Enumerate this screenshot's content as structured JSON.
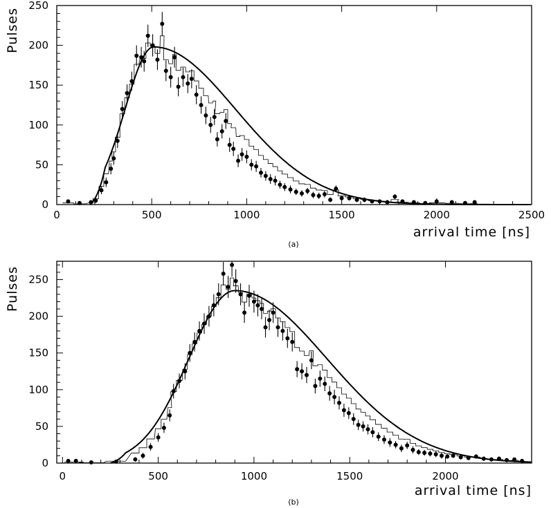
{
  "chart_data": [
    {
      "type": "scatter",
      "panel_label": "(a)",
      "ylabel": "Pulses",
      "xlabel": "arrival time [ns]",
      "xlim": [
        0,
        2500
      ],
      "ylim": [
        0,
        250
      ],
      "x_ticks": [
        "0",
        "500",
        "1000",
        "1500",
        "2000",
        "2500"
      ],
      "y_ticks": [
        "0",
        "50",
        "100",
        "150",
        "200",
        "250"
      ],
      "grid": false,
      "fit_curve": {
        "peak_x": 510,
        "peak_y": 198,
        "start_x": 175,
        "rise_sigma": 150,
        "fall_sigma": 430
      },
      "points": [
        {
          "x": 60,
          "y": 4,
          "err": 2
        },
        {
          "x": 120,
          "y": 2,
          "err": 2
        },
        {
          "x": 180,
          "y": 3,
          "err": 2
        },
        {
          "x": 205,
          "y": 5,
          "err": 3
        },
        {
          "x": 235,
          "y": 18,
          "err": 5
        },
        {
          "x": 260,
          "y": 28,
          "err": 6
        },
        {
          "x": 285,
          "y": 45,
          "err": 7
        },
        {
          "x": 300,
          "y": 58,
          "err": 8
        },
        {
          "x": 320,
          "y": 80,
          "err": 9
        },
        {
          "x": 345,
          "y": 120,
          "err": 10
        },
        {
          "x": 370,
          "y": 140,
          "err": 11
        },
        {
          "x": 395,
          "y": 155,
          "err": 12
        },
        {
          "x": 420,
          "y": 187,
          "err": 13
        },
        {
          "x": 445,
          "y": 185,
          "err": 13
        },
        {
          "x": 460,
          "y": 180,
          "err": 13
        },
        {
          "x": 480,
          "y": 212,
          "err": 14
        },
        {
          "x": 505,
          "y": 200,
          "err": 14
        },
        {
          "x": 530,
          "y": 182,
          "err": 13
        },
        {
          "x": 555,
          "y": 227,
          "err": 15
        },
        {
          "x": 575,
          "y": 168,
          "err": 13
        },
        {
          "x": 600,
          "y": 160,
          "err": 13
        },
        {
          "x": 620,
          "y": 185,
          "err": 13
        },
        {
          "x": 640,
          "y": 148,
          "err": 12
        },
        {
          "x": 665,
          "y": 160,
          "err": 12
        },
        {
          "x": 690,
          "y": 152,
          "err": 12
        },
        {
          "x": 710,
          "y": 158,
          "err": 12
        },
        {
          "x": 735,
          "y": 138,
          "err": 12
        },
        {
          "x": 760,
          "y": 125,
          "err": 11
        },
        {
          "x": 785,
          "y": 112,
          "err": 11
        },
        {
          "x": 810,
          "y": 100,
          "err": 10
        },
        {
          "x": 830,
          "y": 110,
          "err": 10
        },
        {
          "x": 845,
          "y": 82,
          "err": 9
        },
        {
          "x": 870,
          "y": 92,
          "err": 9
        },
        {
          "x": 890,
          "y": 105,
          "err": 10
        },
        {
          "x": 910,
          "y": 75,
          "err": 9
        },
        {
          "x": 930,
          "y": 70,
          "err": 9
        },
        {
          "x": 955,
          "y": 55,
          "err": 8
        },
        {
          "x": 975,
          "y": 63,
          "err": 8
        },
        {
          "x": 1000,
          "y": 60,
          "err": 8
        },
        {
          "x": 1025,
          "y": 50,
          "err": 7
        },
        {
          "x": 1050,
          "y": 48,
          "err": 7
        },
        {
          "x": 1075,
          "y": 40,
          "err": 6
        },
        {
          "x": 1100,
          "y": 36,
          "err": 6
        },
        {
          "x": 1125,
          "y": 32,
          "err": 6
        },
        {
          "x": 1150,
          "y": 30,
          "err": 6
        },
        {
          "x": 1175,
          "y": 25,
          "err": 5
        },
        {
          "x": 1200,
          "y": 22,
          "err": 5
        },
        {
          "x": 1230,
          "y": 19,
          "err": 5
        },
        {
          "x": 1260,
          "y": 16,
          "err": 4
        },
        {
          "x": 1290,
          "y": 14,
          "err": 4
        },
        {
          "x": 1320,
          "y": 17,
          "err": 4
        },
        {
          "x": 1350,
          "y": 12,
          "err": 4
        },
        {
          "x": 1380,
          "y": 11,
          "err": 4
        },
        {
          "x": 1410,
          "y": 13,
          "err": 4
        },
        {
          "x": 1440,
          "y": 6,
          "err": 3
        },
        {
          "x": 1470,
          "y": 20,
          "err": 4
        },
        {
          "x": 1500,
          "y": 8,
          "err": 3
        },
        {
          "x": 1540,
          "y": 8,
          "err": 3
        },
        {
          "x": 1580,
          "y": 6,
          "err": 3
        },
        {
          "x": 1620,
          "y": 6,
          "err": 3
        },
        {
          "x": 1660,
          "y": 4,
          "err": 2
        },
        {
          "x": 1700,
          "y": 4,
          "err": 2
        },
        {
          "x": 1740,
          "y": 3,
          "err": 2
        },
        {
          "x": 1780,
          "y": 10,
          "err": 3
        },
        {
          "x": 1820,
          "y": 4,
          "err": 2
        },
        {
          "x": 1880,
          "y": 3,
          "err": 2
        },
        {
          "x": 1940,
          "y": 2,
          "err": 2
        },
        {
          "x": 2000,
          "y": 4,
          "err": 2
        },
        {
          "x": 2080,
          "y": 3,
          "err": 2
        },
        {
          "x": 2150,
          "y": 2,
          "err": 2
        },
        {
          "x": 2200,
          "y": 3,
          "err": 2
        }
      ]
    },
    {
      "type": "scatter",
      "panel_label": "(b)",
      "ylabel": "Pulses",
      "xlabel": "arrival time [ns]",
      "xlim": [
        -30,
        2450
      ],
      "ylim": [
        0,
        275
      ],
      "x_ticks": [
        "0",
        "500",
        "1000",
        "1500",
        "2000"
      ],
      "y_ticks": [
        "0",
        "50",
        "100",
        "150",
        "200",
        "250"
      ],
      "grid": false,
      "fit_curve": {
        "peak_x": 900,
        "peak_y": 235,
        "start_x": 250,
        "rise_sigma": 240,
        "fall_sigma": 480
      },
      "points": [
        {
          "x": 30,
          "y": 3,
          "err": 2
        },
        {
          "x": 70,
          "y": 3,
          "err": 2
        },
        {
          "x": 150,
          "y": 1,
          "err": 2
        },
        {
          "x": 280,
          "y": 2,
          "err": 2
        },
        {
          "x": 380,
          "y": 5,
          "err": 3
        },
        {
          "x": 420,
          "y": 10,
          "err": 4
        },
        {
          "x": 460,
          "y": 22,
          "err": 5
        },
        {
          "x": 500,
          "y": 35,
          "err": 6
        },
        {
          "x": 530,
          "y": 48,
          "err": 7
        },
        {
          "x": 560,
          "y": 65,
          "err": 8
        },
        {
          "x": 580,
          "y": 98,
          "err": 10
        },
        {
          "x": 610,
          "y": 112,
          "err": 10
        },
        {
          "x": 640,
          "y": 125,
          "err": 11
        },
        {
          "x": 665,
          "y": 150,
          "err": 12
        },
        {
          "x": 690,
          "y": 165,
          "err": 13
        },
        {
          "x": 715,
          "y": 180,
          "err": 13
        },
        {
          "x": 740,
          "y": 190,
          "err": 14
        },
        {
          "x": 765,
          "y": 200,
          "err": 14
        },
        {
          "x": 790,
          "y": 215,
          "err": 15
        },
        {
          "x": 815,
          "y": 230,
          "err": 15
        },
        {
          "x": 840,
          "y": 258,
          "err": 16
        },
        {
          "x": 865,
          "y": 240,
          "err": 15
        },
        {
          "x": 885,
          "y": 270,
          "err": 16
        },
        {
          "x": 905,
          "y": 248,
          "err": 16
        },
        {
          "x": 930,
          "y": 230,
          "err": 15
        },
        {
          "x": 950,
          "y": 205,
          "err": 14
        },
        {
          "x": 975,
          "y": 228,
          "err": 15
        },
        {
          "x": 1000,
          "y": 220,
          "err": 15
        },
        {
          "x": 1020,
          "y": 215,
          "err": 15
        },
        {
          "x": 1040,
          "y": 210,
          "err": 14
        },
        {
          "x": 1060,
          "y": 185,
          "err": 14
        },
        {
          "x": 1080,
          "y": 195,
          "err": 14
        },
        {
          "x": 1100,
          "y": 205,
          "err": 14
        },
        {
          "x": 1125,
          "y": 185,
          "err": 13
        },
        {
          "x": 1150,
          "y": 180,
          "err": 13
        },
        {
          "x": 1175,
          "y": 170,
          "err": 13
        },
        {
          "x": 1200,
          "y": 165,
          "err": 13
        },
        {
          "x": 1225,
          "y": 128,
          "err": 11
        },
        {
          "x": 1250,
          "y": 125,
          "err": 11
        },
        {
          "x": 1275,
          "y": 120,
          "err": 11
        },
        {
          "x": 1300,
          "y": 140,
          "err": 12
        },
        {
          "x": 1320,
          "y": 105,
          "err": 10
        },
        {
          "x": 1345,
          "y": 115,
          "err": 11
        },
        {
          "x": 1370,
          "y": 108,
          "err": 10
        },
        {
          "x": 1395,
          "y": 95,
          "err": 10
        },
        {
          "x": 1420,
          "y": 90,
          "err": 10
        },
        {
          "x": 1445,
          "y": 82,
          "err": 9
        },
        {
          "x": 1470,
          "y": 72,
          "err": 9
        },
        {
          "x": 1495,
          "y": 68,
          "err": 8
        },
        {
          "x": 1520,
          "y": 60,
          "err": 8
        },
        {
          "x": 1545,
          "y": 52,
          "err": 7
        },
        {
          "x": 1570,
          "y": 50,
          "err": 7
        },
        {
          "x": 1595,
          "y": 46,
          "err": 7
        },
        {
          "x": 1620,
          "y": 42,
          "err": 7
        },
        {
          "x": 1650,
          "y": 36,
          "err": 6
        },
        {
          "x": 1680,
          "y": 32,
          "err": 6
        },
        {
          "x": 1710,
          "y": 28,
          "err": 6
        },
        {
          "x": 1740,
          "y": 25,
          "err": 5
        },
        {
          "x": 1770,
          "y": 20,
          "err": 5
        },
        {
          "x": 1800,
          "y": 24,
          "err": 5
        },
        {
          "x": 1830,
          "y": 18,
          "err": 5
        },
        {
          "x": 1860,
          "y": 15,
          "err": 4
        },
        {
          "x": 1890,
          "y": 14,
          "err": 4
        },
        {
          "x": 1920,
          "y": 13,
          "err": 4
        },
        {
          "x": 1950,
          "y": 12,
          "err": 4
        },
        {
          "x": 1980,
          "y": 10,
          "err": 4
        },
        {
          "x": 2010,
          "y": 9,
          "err": 3
        },
        {
          "x": 2040,
          "y": 10,
          "err": 3
        },
        {
          "x": 2080,
          "y": 8,
          "err": 3
        },
        {
          "x": 2120,
          "y": 7,
          "err": 3
        },
        {
          "x": 2160,
          "y": 9,
          "err": 3
        },
        {
          "x": 2200,
          "y": 6,
          "err": 3
        },
        {
          "x": 2240,
          "y": 5,
          "err": 3
        },
        {
          "x": 2280,
          "y": 6,
          "err": 3
        },
        {
          "x": 2320,
          "y": 4,
          "err": 2
        },
        {
          "x": 2360,
          "y": 5,
          "err": 2
        },
        {
          "x": 2400,
          "y": 3,
          "err": 2
        }
      ]
    }
  ]
}
